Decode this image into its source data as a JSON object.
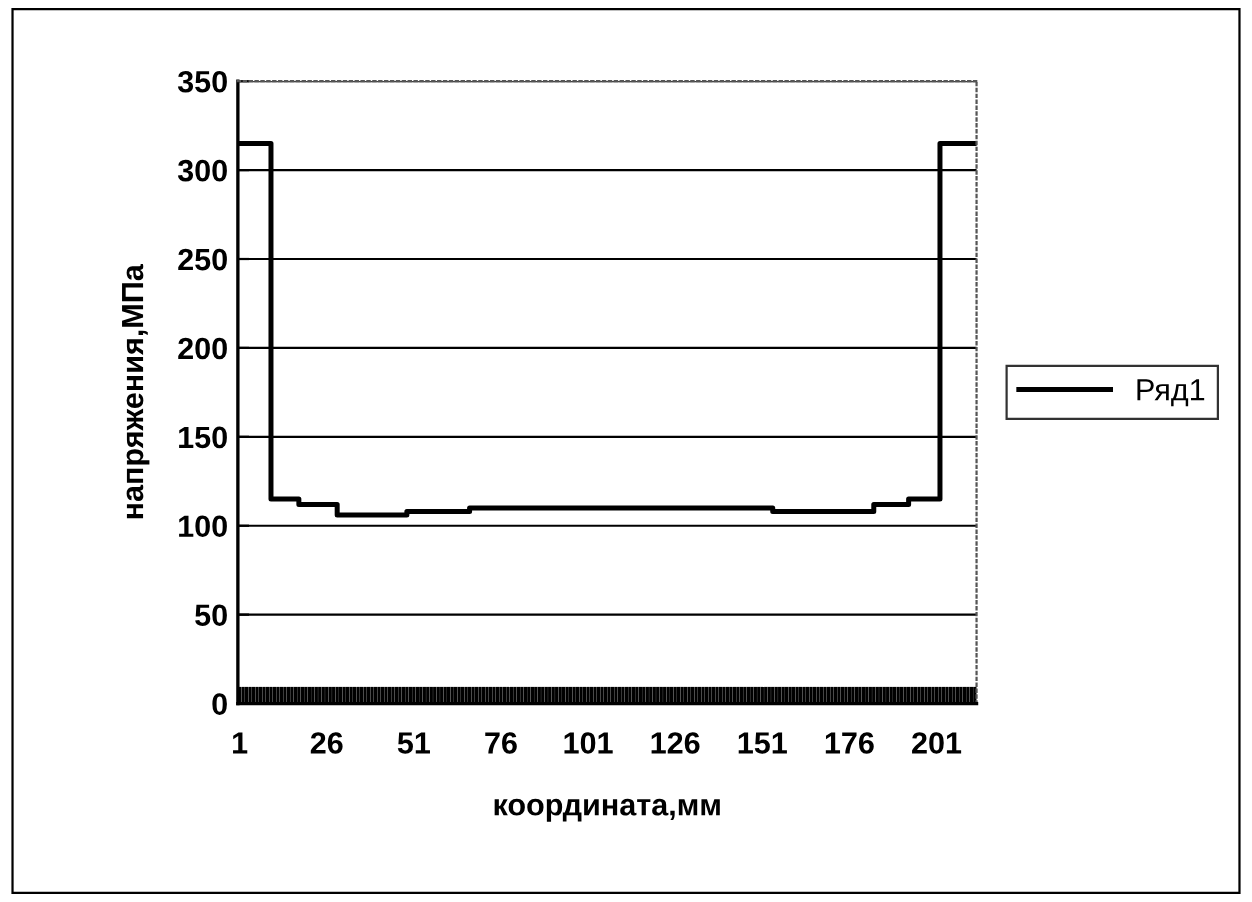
{
  "chart_data": {
    "type": "line",
    "xlabel": "координата,мм",
    "ylabel": "напряжения,МПа",
    "xlim": [
      0.5,
      212.5
    ],
    "xticks": [
      1,
      26,
      51,
      76,
      101,
      126,
      151,
      176,
      201
    ],
    "ylim": [
      0,
      350
    ],
    "yticks": [
      0,
      50,
      100,
      150,
      200,
      250,
      300,
      350
    ],
    "grid": "y",
    "legend": "right",
    "marker": "none",
    "line_style": "solid",
    "series": [
      {
        "name": "Ряд1",
        "color": "#000000",
        "x": [
          1,
          10,
          10,
          18,
          18,
          29,
          29,
          49,
          49,
          67,
          67,
          154,
          154,
          183,
          183,
          193,
          193,
          202,
          202,
          212
        ],
        "values": [
          315,
          315,
          115,
          115,
          112,
          112,
          106,
          106,
          108,
          108,
          110,
          110,
          108,
          108,
          112,
          112,
          115,
          115,
          315,
          315
        ]
      }
    ]
  }
}
